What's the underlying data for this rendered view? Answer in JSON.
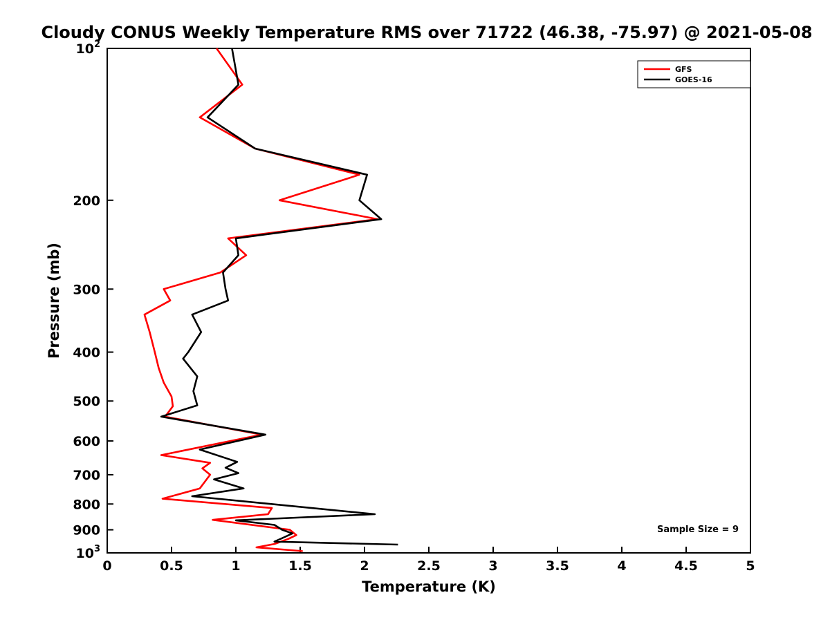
{
  "chart_data": {
    "type": "line",
    "title": "Cloudy CONUS Weekly Temperature RMS over 71722 (46.38, -75.97) @ 2021-05-08",
    "xlabel": "Temperature (K)",
    "ylabel": "Pressure (mb)",
    "annotation": "Sample Size = 9",
    "xlim": [
      0,
      5
    ],
    "ylim": [
      100,
      1000
    ],
    "y_scale": "log",
    "y_inverted": true,
    "grid": false,
    "legend_position": "top-right",
    "x_ticks": [
      {
        "value": 0,
        "label": "0"
      },
      {
        "value": 0.5,
        "label": "0.5"
      },
      {
        "value": 1,
        "label": "1"
      },
      {
        "value": 1.5,
        "label": "1.5"
      },
      {
        "value": 2,
        "label": "2"
      },
      {
        "value": 2.5,
        "label": "2.5"
      },
      {
        "value": 3,
        "label": "3"
      },
      {
        "value": 3.5,
        "label": "3.5"
      },
      {
        "value": 4,
        "label": "4"
      },
      {
        "value": 4.5,
        "label": "4.5"
      },
      {
        "value": 5,
        "label": "5"
      }
    ],
    "y_ticks": [
      {
        "value": 100,
        "label": "10^2"
      },
      {
        "value": 200,
        "label": "200"
      },
      {
        "value": 300,
        "label": "300"
      },
      {
        "value": 400,
        "label": "400"
      },
      {
        "value": 500,
        "label": "500"
      },
      {
        "value": 600,
        "label": "600"
      },
      {
        "value": 700,
        "label": "700"
      },
      {
        "value": 800,
        "label": "800"
      },
      {
        "value": 900,
        "label": "900"
      },
      {
        "value": 1000,
        "label": "10^3"
      }
    ],
    "series": [
      {
        "name": "GFS",
        "color": "#ff0000",
        "points_format": [
          "pressure_mb",
          "rms_K"
        ],
        "points": [
          [
            100,
            0.85
          ],
          [
            118,
            1.05
          ],
          [
            137,
            0.72
          ],
          [
            158,
            1.15
          ],
          [
            178,
            1.96
          ],
          [
            200,
            1.34
          ],
          [
            218,
            2.1
          ],
          [
            238,
            0.94
          ],
          [
            257,
            1.08
          ],
          [
            278,
            0.88
          ],
          [
            300,
            0.44
          ],
          [
            316,
            0.49
          ],
          [
            337,
            0.29
          ],
          [
            365,
            0.33
          ],
          [
            400,
            0.37
          ],
          [
            430,
            0.4
          ],
          [
            460,
            0.44
          ],
          [
            490,
            0.5
          ],
          [
            512,
            0.51
          ],
          [
            537,
            0.45
          ],
          [
            583,
            1.2
          ],
          [
            640,
            0.42
          ],
          [
            663,
            0.8
          ],
          [
            680,
            0.74
          ],
          [
            700,
            0.8
          ],
          [
            745,
            0.72
          ],
          [
            781,
            0.43
          ],
          [
            815,
            1.28
          ],
          [
            838,
            1.25
          ],
          [
            860,
            0.82
          ],
          [
            900,
            1.42
          ],
          [
            922,
            1.47
          ],
          [
            940,
            1.4
          ],
          [
            960,
            1.3
          ],
          [
            975,
            1.16
          ],
          [
            992,
            1.52
          ]
        ]
      },
      {
        "name": "GOES-16",
        "color": "#000000",
        "points_format": [
          "pressure_mb",
          "rms_K"
        ],
        "points": [
          [
            100,
            0.97
          ],
          [
            118,
            1.02
          ],
          [
            137,
            0.78
          ],
          [
            158,
            1.15
          ],
          [
            178,
            2.02
          ],
          [
            200,
            1.96
          ],
          [
            218,
            2.13
          ],
          [
            238,
            1.0
          ],
          [
            257,
            1.02
          ],
          [
            278,
            0.9
          ],
          [
            300,
            0.92
          ],
          [
            316,
            0.94
          ],
          [
            337,
            0.66
          ],
          [
            365,
            0.73
          ],
          [
            400,
            0.63
          ],
          [
            412,
            0.59
          ],
          [
            447,
            0.7
          ],
          [
            478,
            0.67
          ],
          [
            510,
            0.7
          ],
          [
            537,
            0.42
          ],
          [
            583,
            1.23
          ],
          [
            624,
            0.72
          ],
          [
            660,
            1.01
          ],
          [
            678,
            0.92
          ],
          [
            695,
            1.02
          ],
          [
            715,
            0.83
          ],
          [
            745,
            1.06
          ],
          [
            772,
            0.66
          ],
          [
            838,
            2.08
          ],
          [
            862,
            1.0
          ],
          [
            880,
            1.3
          ],
          [
            900,
            1.36
          ],
          [
            915,
            1.44
          ],
          [
            930,
            1.38
          ],
          [
            950,
            1.3
          ],
          [
            963,
            2.26
          ]
        ]
      }
    ]
  }
}
